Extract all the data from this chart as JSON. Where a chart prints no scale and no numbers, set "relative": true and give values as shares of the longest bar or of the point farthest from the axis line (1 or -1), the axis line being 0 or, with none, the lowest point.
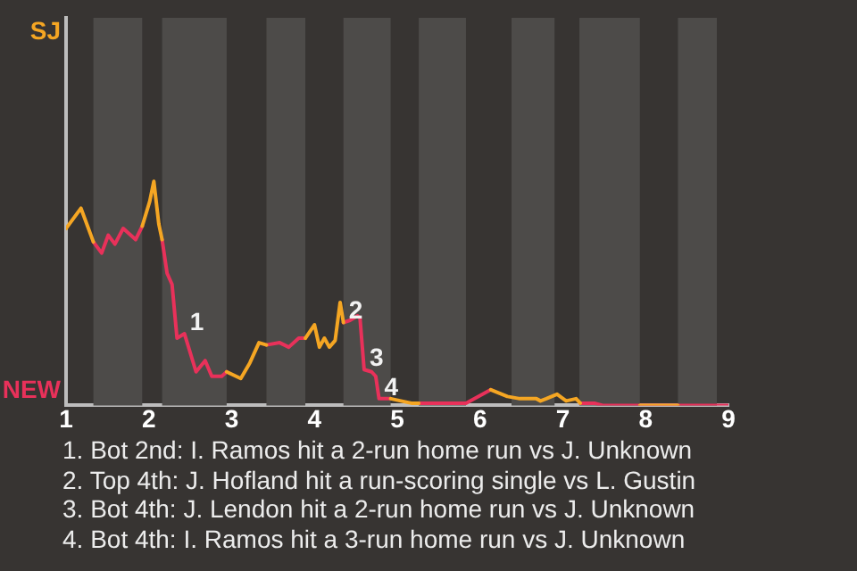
{
  "chart_data": {
    "type": "line",
    "relative": true,
    "x": [
      1,
      1.02,
      1.18,
      1.33,
      1.43,
      1.51,
      1.59,
      1.69,
      1.84,
      1.92,
      2.01,
      2.06,
      2.12,
      2.16,
      2.22,
      2.28,
      2.34,
      2.43,
      2.57,
      2.68,
      2.76,
      2.88,
      2.94,
      3.11,
      3.22,
      3.33,
      3.42,
      3.58,
      3.69,
      3.81,
      3.89,
      4,
      4.06,
      4.12,
      4.18,
      4.25,
      4.31,
      4.35,
      4.43,
      4.52,
      4.55,
      4.6,
      4.69,
      4.74,
      4.78,
      4.92,
      5.17,
      5.26,
      5.83,
      6.13,
      6.33,
      6.48,
      6.68,
      6.73,
      6.8,
      6.93,
      7.04,
      7.16,
      7.21,
      7.38,
      7.48,
      7.61,
      7.7,
      7.93,
      8.39,
      9
    ],
    "series": [
      {
        "name": "SJ",
        "color": "#f5a623",
        "values": [
          0.79,
          0.79,
          0.88,
          0.73,
          null,
          null,
          null,
          null,
          null,
          0.8,
          0.91,
          1,
          0.81,
          0.74,
          null,
          null,
          null,
          null,
          null,
          null,
          null,
          null,
          0.15,
          0.12,
          0.19,
          0.28,
          0.27,
          null,
          null,
          null,
          0.3,
          0.36,
          0.26,
          0.3,
          0.26,
          0.29,
          0.46,
          0.37,
          null,
          null,
          null,
          null,
          null,
          null,
          null,
          0.03,
          0.01,
          0.01,
          null,
          0.07,
          0.04,
          0.03,
          0.03,
          0.02,
          0.03,
          0.05,
          0.02,
          0.03,
          0.01,
          null,
          null,
          null,
          null,
          0,
          0,
          null
        ]
      },
      {
        "name": "NEW",
        "color": "#e8315a",
        "values": [
          null,
          null,
          null,
          0.73,
          0.68,
          0.76,
          0.72,
          0.79,
          0.74,
          0.8,
          null,
          null,
          null,
          0.74,
          0.59,
          0.54,
          0.3,
          0.32,
          0.15,
          0.2,
          0.13,
          0.13,
          0.15,
          null,
          null,
          null,
          0.27,
          0.28,
          0.26,
          0.3,
          0.3,
          null,
          null,
          null,
          null,
          null,
          null,
          0.37,
          0.38,
          0.4,
          0.39,
          0.16,
          0.15,
          0.13,
          0.03,
          0.03,
          null,
          0.01,
          0.01,
          0.07,
          null,
          null,
          null,
          null,
          null,
          null,
          null,
          null,
          0.01,
          0.01,
          0,
          0,
          0,
          0,
          0,
          0
        ]
      }
    ],
    "xlim": [
      1,
      9
    ],
    "xticks": [
      1,
      2,
      3,
      4,
      5,
      6,
      7,
      8,
      9
    ],
    "legend": false,
    "marker": "none",
    "line_style": "solid",
    "bands": [
      {
        "axis": "x",
        "from": 1.33,
        "to": 1.92,
        "color": "#4d4b49"
      },
      {
        "axis": "x",
        "from": 2.16,
        "to": 2.94,
        "color": "#4d4b49"
      },
      {
        "axis": "x",
        "from": 3.42,
        "to": 3.89,
        "color": "#4d4b49"
      },
      {
        "axis": "x",
        "from": 4.35,
        "to": 4.92,
        "color": "#4d4b49"
      },
      {
        "axis": "x",
        "from": 5.26,
        "to": 5.83,
        "color": "#4d4b49"
      },
      {
        "axis": "x",
        "from": 6.38,
        "to": 6.9,
        "color": "#4d4b49"
      },
      {
        "axis": "x",
        "from": 7.2,
        "to": 7.93,
        "color": "#4d4b49"
      },
      {
        "axis": "x",
        "from": 8.39,
        "to": 8.86,
        "color": "#4d4b49"
      }
    ],
    "annotations": [
      {
        "text": "1",
        "x": 2.43,
        "y": 0.32
      },
      {
        "text": "2",
        "x": 4.35,
        "y": 0.37
      },
      {
        "text": "3",
        "x": 4.6,
        "y": 0.16
      },
      {
        "text": "4",
        "x": 4.78,
        "y": 0.03
      },
      "1. Bot 2nd: I. Ramos hit a 2-run home run vs J. Unknown",
      "2. Top 4th: J. Hofland hit a run-scoring single vs L. Gustin",
      "3. Bot 4th: J. Lendon hit a 2-run home run vs J. Unknown",
      "4. Bot 4th: I. Ramos hit a 3-run home run vs J. Unknown"
    ]
  }
}
